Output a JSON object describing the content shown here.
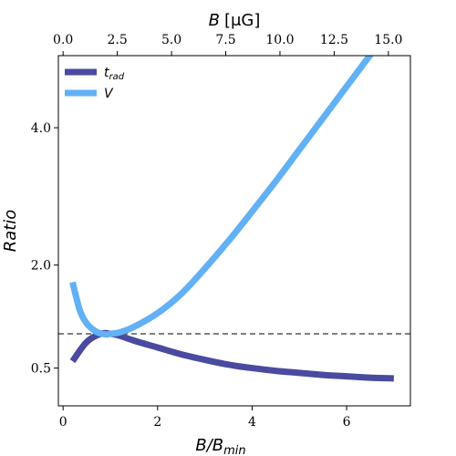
{
  "chart_data": {
    "type": "line",
    "xlabel": "B/B_min",
    "xlabel_main": "B/B",
    "xlabel_sub": "min",
    "ylabel": "Ratio",
    "top_xlabel": "B [μG]",
    "top_xlabel_main": "B",
    "top_xlabel_unit": "[μG]",
    "xlim": [
      -0.1,
      7.35
    ],
    "ylim": [
      -0.05,
      5.05
    ],
    "xticks": [
      0,
      2,
      4,
      6
    ],
    "xtick_labels": [
      "0",
      "2",
      "4",
      "6"
    ],
    "y_tick_values": [
      0.5,
      2.0,
      4.0
    ],
    "ytick_labels": [
      "0.5",
      "2.0",
      "4.0"
    ],
    "top_xtick_labels": [
      "0.0",
      "2.5",
      "5.0",
      "7.5",
      "10.0",
      "12.5",
      "15.0"
    ],
    "top_xtick_positions": [
      0.0,
      1.1474,
      2.2948,
      3.4422,
      4.5896,
      5.737,
      6.8844
    ],
    "hline": {
      "y": 1.0,
      "style": "dashed",
      "color": "#555555"
    },
    "legend_position": "upper left",
    "series": [
      {
        "name": "t_rad",
        "legend_main": "t",
        "legend_sub": "rad",
        "color": "#4a4aa0",
        "x": [
          0.2,
          0.5,
          0.8,
          1.0,
          1.2,
          1.5,
          2.0,
          2.5,
          3.0,
          3.5,
          4.0,
          4.5,
          5.0,
          5.5,
          6.0,
          6.5,
          7.0
        ],
        "y": [
          0.6,
          0.88,
          1.0,
          1.0,
          0.97,
          0.9,
          0.8,
          0.7,
          0.62,
          0.55,
          0.5,
          0.46,
          0.43,
          0.4,
          0.38,
          0.36,
          0.35
        ]
      },
      {
        "name": "V",
        "legend_main": "V",
        "color": "#62b0f5",
        "x": [
          0.2,
          0.35,
          0.5,
          0.7,
          0.9,
          1.0,
          1.2,
          1.5,
          2.0,
          2.5,
          3.0,
          3.5,
          4.0,
          4.5,
          5.0,
          5.5,
          6.0,
          6.5,
          7.0
        ],
        "y": [
          1.75,
          1.35,
          1.15,
          1.03,
          0.99,
          1.0,
          1.02,
          1.1,
          1.3,
          1.58,
          1.95,
          2.35,
          2.78,
          3.22,
          3.68,
          4.14,
          4.6,
          5.06,
          5.52
        ]
      }
    ]
  }
}
